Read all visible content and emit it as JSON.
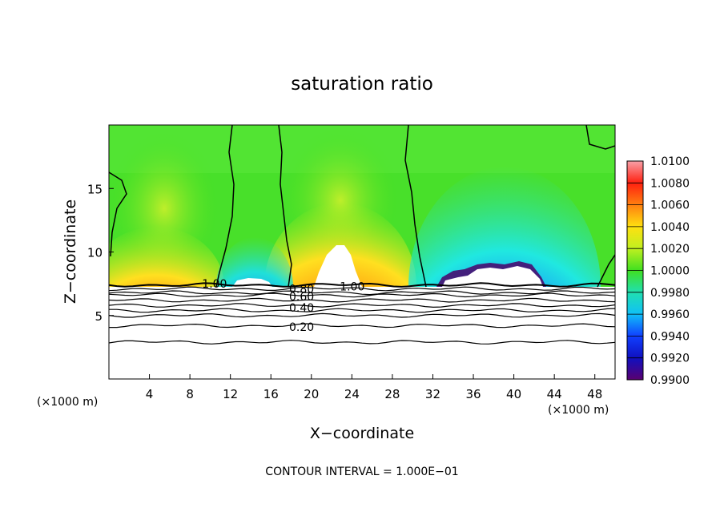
{
  "chart_data": {
    "type": "heatmap",
    "title": "saturation ratio",
    "xlabel": "X−coordinate",
    "ylabel": "Z−coordinate",
    "x_unit": "(×1000 m)",
    "y_unit": "(×1000 m)",
    "xlim": [
      0,
      50
    ],
    "ylim": [
      0,
      20
    ],
    "x_ticks": [
      4,
      8,
      12,
      16,
      20,
      24,
      28,
      32,
      36,
      40,
      44,
      48
    ],
    "y_ticks": [
      5,
      10,
      15
    ],
    "footer": "CONTOUR INTERVAL = 1.000E−01",
    "colorbar": {
      "levels": [
        0.99,
        0.992,
        0.994,
        0.996,
        0.998,
        1.0,
        1.002,
        1.004,
        1.006,
        1.008,
        1.01
      ],
      "labels": [
        "0.9900",
        "0.9920",
        "0.9940",
        "0.9960",
        "0.9980",
        "1.0000",
        "1.0020",
        "1.0040",
        "1.0060",
        "1.0080",
        "1.0100"
      ]
    },
    "contour_labels": [
      {
        "text": "1.00",
        "x": 9.2,
        "z": 7.5
      },
      {
        "text": "1.00",
        "x": 22.8,
        "z": 7.3
      },
      {
        "text": "0.80",
        "x": 17.8,
        "z": 7.1
      },
      {
        "text": "0.60",
        "x": 17.8,
        "z": 6.5
      },
      {
        "text": "0.40",
        "x": 17.8,
        "z": 5.6
      },
      {
        "text": "0.20",
        "x": 17.8,
        "z": 4.1
      }
    ],
    "lower_contour_heights_z": [
      7.4,
      7.1,
      6.8,
      6.6,
      6.2,
      5.8,
      5.4,
      5.0,
      4.2,
      2.9
    ]
  }
}
